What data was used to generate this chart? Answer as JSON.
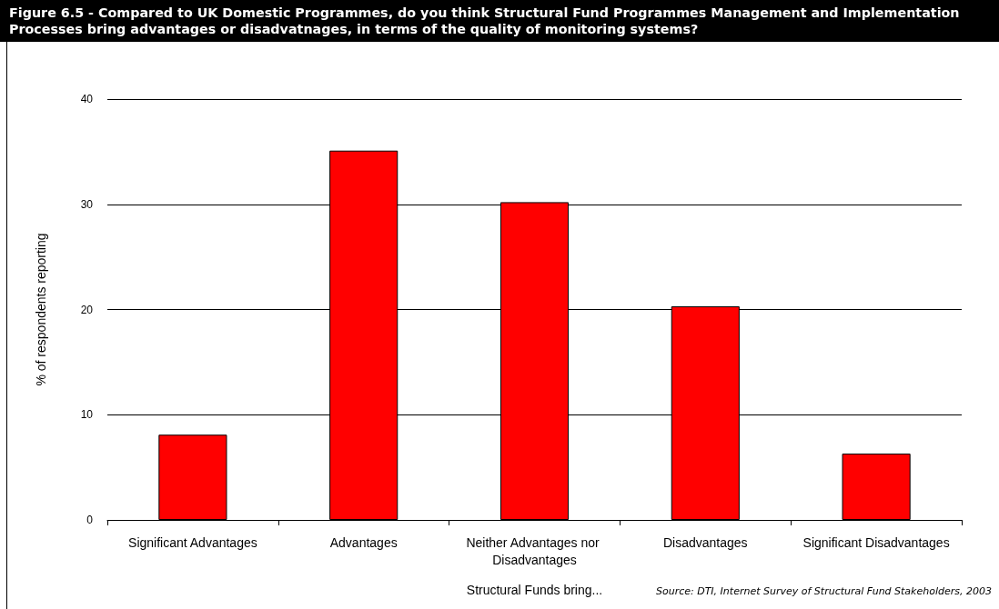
{
  "chart_data": {
    "type": "bar",
    "title": "Figure 6.5 - Compared to UK Domestic Programmes, do you think Structural Fund Programmes Management and Implementation Processes bring advantages or disadvatnages, in terms of the quality of monitoring systems?",
    "categories": [
      "Significant Advantages",
      "Advantages",
      "Neither Advantages nor Disadvantages",
      "Disadvantages",
      "Significant Disadvantages"
    ],
    "values": [
      8.1,
      35.1,
      30.2,
      20.3,
      6.3
    ],
    "color": "#ff0000",
    "xlabel": "Structural Funds bring...",
    "ylabel": "% of respondents reporting",
    "ylim": [
      0,
      40
    ],
    "yticks": [
      0,
      10,
      20,
      30,
      40
    ],
    "grid": "y",
    "annotations": [
      "Source: DTI, Internet Survey of Structural Fund Stakeholders, 2003"
    ]
  }
}
